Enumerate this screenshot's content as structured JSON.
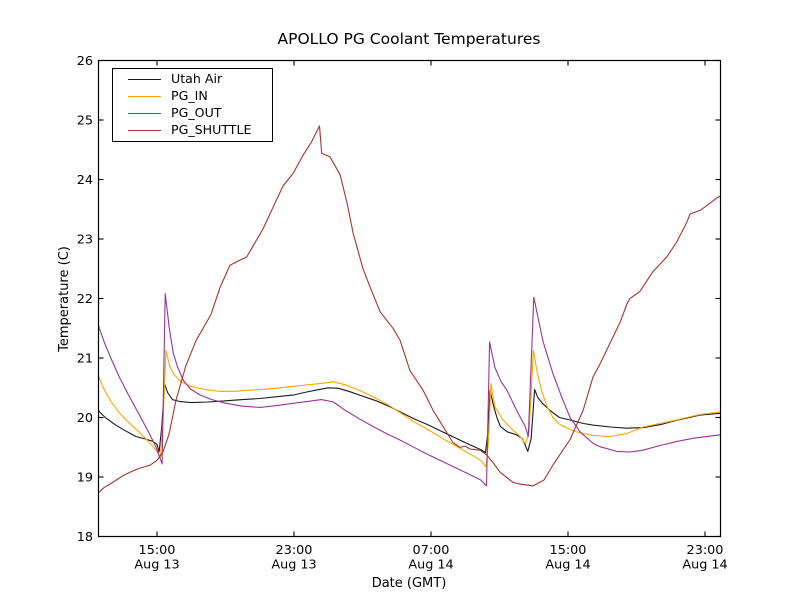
{
  "figure": {
    "background": "#ffffff",
    "frame_color": "#000000"
  },
  "chart_data": {
    "type": "line",
    "title": "APOLLO PG Coolant Temperatures",
    "xlabel": "Date (GMT)",
    "ylabel": "Temperature (C)",
    "grid": false,
    "legend_position": "upper left",
    "x_unit_note": "hours since Aug 13 00:00 GMT",
    "xlim": [
      11.45,
      47.9
    ],
    "ylim": [
      18,
      26
    ],
    "y_ticks": [
      18,
      19,
      20,
      21,
      22,
      23,
      24,
      25,
      26
    ],
    "x_ticks": [
      {
        "t": 15,
        "time": "15:00",
        "date": "Aug 13"
      },
      {
        "t": 23,
        "time": "23:00",
        "date": "Aug 13"
      },
      {
        "t": 31,
        "time": "07:00",
        "date": "Aug 14"
      },
      {
        "t": 39,
        "time": "15:00",
        "date": "Aug 14"
      },
      {
        "t": 47,
        "time": "23:00",
        "date": "Aug 14"
      }
    ],
    "series": [
      {
        "name": "Utah Air",
        "color": "#1a1a1a",
        "points": [
          [
            11.45,
            20.28
          ],
          [
            11.62,
            20.1
          ],
          [
            12.02,
            19.99
          ],
          [
            12.6,
            19.87
          ],
          [
            13.2,
            19.77
          ],
          [
            13.77,
            19.68
          ],
          [
            14.3,
            19.64
          ],
          [
            14.75,
            19.6
          ],
          [
            15.0,
            19.55
          ],
          [
            15.12,
            19.42
          ],
          [
            15.28,
            19.85
          ],
          [
            15.45,
            20.56
          ],
          [
            15.62,
            20.42
          ],
          [
            15.9,
            20.3
          ],
          [
            16.3,
            20.27
          ],
          [
            17.0,
            20.25
          ],
          [
            18.0,
            20.26
          ],
          [
            19.0,
            20.28
          ],
          [
            20.0,
            20.3
          ],
          [
            21.0,
            20.32
          ],
          [
            22.0,
            20.35
          ],
          [
            23.0,
            20.38
          ],
          [
            23.6,
            20.42
          ],
          [
            24.3,
            20.46
          ],
          [
            25.0,
            20.5
          ],
          [
            25.6,
            20.49
          ],
          [
            26.2,
            20.44
          ],
          [
            27.0,
            20.36
          ],
          [
            27.8,
            20.28
          ],
          [
            28.6,
            20.18
          ],
          [
            29.3,
            20.08
          ],
          [
            30.0,
            19.98
          ],
          [
            30.8,
            19.88
          ],
          [
            31.6,
            19.77
          ],
          [
            32.4,
            19.66
          ],
          [
            33.2,
            19.55
          ],
          [
            33.9,
            19.46
          ],
          [
            34.18,
            19.41
          ],
          [
            34.32,
            19.75
          ],
          [
            34.45,
            20.45
          ],
          [
            34.65,
            20.2
          ],
          [
            34.85,
            20.0
          ],
          [
            35.05,
            19.85
          ],
          [
            35.45,
            19.76
          ],
          [
            36.0,
            19.71
          ],
          [
            36.35,
            19.64
          ],
          [
            36.65,
            19.43
          ],
          [
            36.85,
            19.65
          ],
          [
            37.05,
            20.47
          ],
          [
            37.25,
            20.33
          ],
          [
            37.5,
            20.24
          ],
          [
            37.95,
            20.12
          ],
          [
            38.5,
            20.0
          ],
          [
            39.1,
            19.96
          ],
          [
            39.9,
            19.9
          ],
          [
            40.5,
            19.87
          ],
          [
            41.5,
            19.84
          ],
          [
            42.4,
            19.82
          ],
          [
            43.4,
            19.83
          ],
          [
            44.4,
            19.88
          ],
          [
            45.3,
            19.95
          ],
          [
            46.1,
            20.0
          ],
          [
            46.7,
            20.04
          ],
          [
            47.88,
            20.07
          ]
        ]
      },
      {
        "name": "PG_IN",
        "color": "#ffa500",
        "points": [
          [
            11.45,
            20.78
          ],
          [
            11.9,
            20.48
          ],
          [
            12.3,
            20.27
          ],
          [
            12.8,
            20.08
          ],
          [
            13.3,
            19.93
          ],
          [
            13.9,
            19.77
          ],
          [
            14.5,
            19.6
          ],
          [
            14.95,
            19.45
          ],
          [
            15.2,
            19.33
          ],
          [
            15.38,
            20.1
          ],
          [
            15.52,
            21.13
          ],
          [
            15.75,
            20.86
          ],
          [
            16.0,
            20.72
          ],
          [
            16.4,
            20.6
          ],
          [
            17.0,
            20.52
          ],
          [
            17.8,
            20.47
          ],
          [
            18.6,
            20.44
          ],
          [
            19.5,
            20.44
          ],
          [
            20.5,
            20.46
          ],
          [
            21.5,
            20.48
          ],
          [
            22.5,
            20.51
          ],
          [
            23.5,
            20.54
          ],
          [
            24.5,
            20.57
          ],
          [
            25.3,
            20.6
          ],
          [
            26.0,
            20.55
          ],
          [
            26.8,
            20.46
          ],
          [
            27.6,
            20.35
          ],
          [
            28.4,
            20.23
          ],
          [
            29.2,
            20.08
          ],
          [
            30.0,
            19.93
          ],
          [
            30.8,
            19.8
          ],
          [
            31.6,
            19.66
          ],
          [
            32.4,
            19.53
          ],
          [
            33.2,
            19.4
          ],
          [
            33.9,
            19.28
          ],
          [
            34.22,
            19.17
          ],
          [
            34.36,
            19.6
          ],
          [
            34.5,
            20.57
          ],
          [
            34.73,
            20.18
          ],
          [
            35.2,
            19.96
          ],
          [
            35.79,
            19.79
          ],
          [
            36.2,
            19.68
          ],
          [
            36.52,
            19.56
          ],
          [
            36.72,
            19.75
          ],
          [
            36.98,
            21.13
          ],
          [
            37.2,
            20.76
          ],
          [
            37.46,
            20.45
          ],
          [
            37.75,
            20.2
          ],
          [
            38.12,
            20.0
          ],
          [
            38.53,
            19.88
          ],
          [
            39.12,
            19.8
          ],
          [
            39.7,
            19.74
          ],
          [
            40.46,
            19.7
          ],
          [
            41.45,
            19.68
          ],
          [
            42.43,
            19.73
          ],
          [
            43.38,
            19.84
          ],
          [
            44.37,
            19.9
          ],
          [
            45.35,
            19.96
          ],
          [
            45.94,
            20.0
          ],
          [
            46.71,
            20.05
          ],
          [
            47.88,
            20.09
          ]
        ]
      },
      {
        "name": "PG_OUT",
        "color": "#993399",
        "points": [
          [
            11.45,
            21.65
          ],
          [
            11.9,
            21.28
          ],
          [
            12.3,
            21.0
          ],
          [
            12.8,
            20.68
          ],
          [
            13.3,
            20.4
          ],
          [
            13.9,
            20.08
          ],
          [
            14.5,
            19.76
          ],
          [
            14.95,
            19.5
          ],
          [
            15.3,
            19.22
          ],
          [
            15.48,
            22.08
          ],
          [
            15.72,
            21.5
          ],
          [
            15.95,
            21.08
          ],
          [
            16.2,
            20.85
          ],
          [
            16.55,
            20.62
          ],
          [
            16.95,
            20.48
          ],
          [
            17.5,
            20.38
          ],
          [
            18.2,
            20.3
          ],
          [
            19.0,
            20.24
          ],
          [
            20.0,
            20.19
          ],
          [
            21.0,
            20.17
          ],
          [
            22.0,
            20.2
          ],
          [
            23.0,
            20.24
          ],
          [
            23.8,
            20.27
          ],
          [
            24.6,
            20.3
          ],
          [
            25.3,
            20.26
          ],
          [
            26.0,
            20.12
          ],
          [
            26.8,
            19.98
          ],
          [
            27.6,
            19.85
          ],
          [
            28.4,
            19.73
          ],
          [
            29.2,
            19.62
          ],
          [
            30.0,
            19.5
          ],
          [
            30.8,
            19.38
          ],
          [
            31.6,
            19.27
          ],
          [
            32.4,
            19.16
          ],
          [
            33.2,
            19.05
          ],
          [
            33.9,
            18.95
          ],
          [
            34.24,
            18.85
          ],
          [
            34.42,
            21.27
          ],
          [
            34.73,
            20.84
          ],
          [
            35.1,
            20.6
          ],
          [
            35.45,
            20.45
          ],
          [
            36.0,
            20.12
          ],
          [
            36.5,
            19.85
          ],
          [
            36.68,
            19.68
          ],
          [
            37.0,
            22.02
          ],
          [
            37.54,
            21.28
          ],
          [
            38.12,
            20.74
          ],
          [
            38.7,
            20.29
          ],
          [
            39.12,
            20.0
          ],
          [
            39.7,
            19.76
          ],
          [
            40.45,
            19.57
          ],
          [
            40.87,
            19.51
          ],
          [
            41.85,
            19.43
          ],
          [
            42.62,
            19.42
          ],
          [
            43.38,
            19.45
          ],
          [
            44.37,
            19.53
          ],
          [
            45.4,
            19.6
          ],
          [
            46.3,
            19.65
          ],
          [
            47.88,
            19.71
          ]
        ]
      },
      {
        "name": "PG_SHUTTLE",
        "color": "#a5342e",
        "points": [
          [
            11.45,
            18.7
          ],
          [
            11.9,
            18.82
          ],
          [
            12.25,
            18.88
          ],
          [
            13.0,
            19.02
          ],
          [
            13.5,
            19.09
          ],
          [
            14.0,
            19.15
          ],
          [
            14.6,
            19.2
          ],
          [
            15.0,
            19.28
          ],
          [
            15.35,
            19.42
          ],
          [
            15.7,
            19.72
          ],
          [
            16.11,
            20.29
          ],
          [
            16.69,
            20.87
          ],
          [
            17.28,
            21.29
          ],
          [
            18.15,
            21.73
          ],
          [
            18.7,
            22.2
          ],
          [
            19.26,
            22.56
          ],
          [
            19.75,
            22.63
          ],
          [
            20.24,
            22.7
          ],
          [
            21.19,
            23.17
          ],
          [
            21.8,
            23.55
          ],
          [
            22.36,
            23.89
          ],
          [
            22.94,
            24.1
          ],
          [
            23.53,
            24.41
          ],
          [
            24.0,
            24.62
          ],
          [
            24.49,
            24.9
          ],
          [
            24.62,
            24.44
          ],
          [
            25.1,
            24.38
          ],
          [
            25.69,
            24.08
          ],
          [
            26.1,
            23.6
          ],
          [
            26.45,
            23.1
          ],
          [
            27.03,
            22.5
          ],
          [
            27.5,
            22.15
          ],
          [
            28.02,
            21.78
          ],
          [
            28.78,
            21.5
          ],
          [
            29.19,
            21.3
          ],
          [
            29.77,
            20.79
          ],
          [
            30.53,
            20.46
          ],
          [
            31.12,
            20.12
          ],
          [
            31.7,
            19.85
          ],
          [
            32.28,
            19.58
          ],
          [
            32.69,
            19.5
          ],
          [
            33.0,
            19.52
          ],
          [
            33.27,
            19.47
          ],
          [
            33.86,
            19.45
          ],
          [
            34.21,
            19.38
          ],
          [
            34.6,
            19.25
          ],
          [
            35.03,
            19.08
          ],
          [
            35.79,
            18.91
          ],
          [
            36.2,
            18.88
          ],
          [
            36.96,
            18.85
          ],
          [
            37.6,
            18.95
          ],
          [
            38.12,
            19.2
          ],
          [
            38.53,
            19.38
          ],
          [
            39.12,
            19.63
          ],
          [
            39.88,
            20.12
          ],
          [
            40.46,
            20.68
          ],
          [
            40.87,
            20.9
          ],
          [
            41.45,
            21.25
          ],
          [
            42.04,
            21.6
          ],
          [
            42.43,
            21.9
          ],
          [
            42.62,
            22.0
          ],
          [
            43.2,
            22.12
          ],
          [
            43.96,
            22.45
          ],
          [
            44.77,
            22.7
          ],
          [
            45.35,
            22.95
          ],
          [
            45.94,
            23.28
          ],
          [
            46.13,
            23.42
          ],
          [
            46.71,
            23.48
          ],
          [
            47.1,
            23.56
          ],
          [
            47.69,
            23.69
          ],
          [
            47.88,
            23.72
          ]
        ]
      }
    ]
  }
}
